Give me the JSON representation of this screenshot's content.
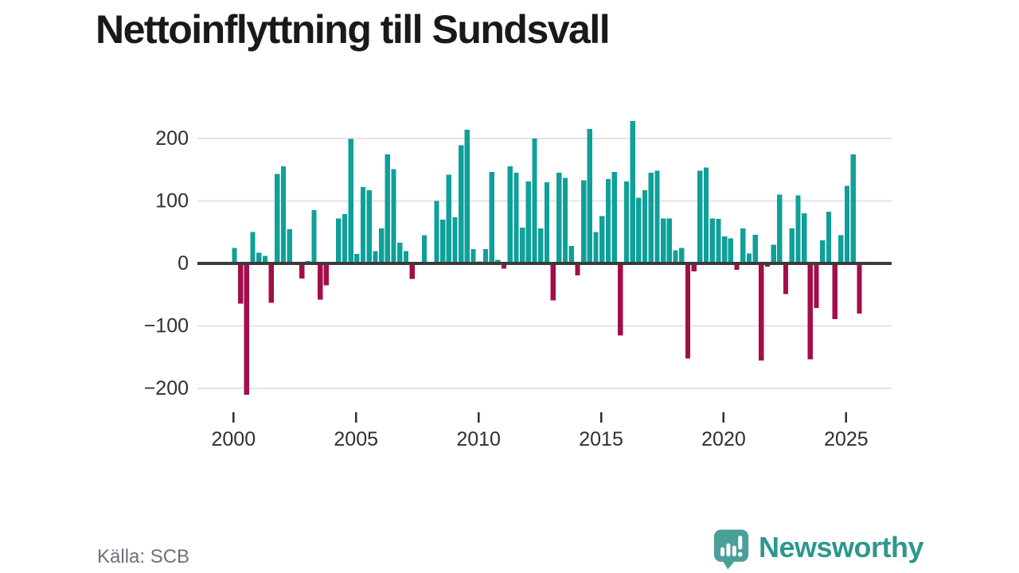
{
  "title": "Nettoinflyttning till Sundsvall",
  "source": "Källa: SCB",
  "branding": {
    "logo_text": "Newsworthy",
    "icon_name": "newsworthy-speech-bubble-bar-chart-icon"
  },
  "colors": {
    "background": "#FFFFFF",
    "positive_bar": "#0FA099",
    "negative_bar": "#A30D49",
    "zero_axis": "#3B3B3B",
    "gridline": "#E4E4E4",
    "title_text": "#191919",
    "axis_text": "#2F2F2F",
    "source_text": "#6F6F79",
    "brand_teal": "#2E978F",
    "brand_icon_teal": "#4C9F99"
  },
  "chart_data": {
    "type": "bar",
    "title": "Nettoinflyttning till Sundsvall",
    "series_name": "Nettoinflyttning per kvartal",
    "first_period": "2000-Q1",
    "last_period": "2025-Q3",
    "periods_per_year": 4,
    "first_year": 2000,
    "grid": "horizontal",
    "legend": "none",
    "ylim": [
      -230,
      245
    ],
    "y_ticks": [
      {
        "label": "200",
        "value": 200
      },
      {
        "label": "100",
        "value": 100
      },
      {
        "label": "0",
        "value": 0
      },
      {
        "label": "−100",
        "value": -100
      },
      {
        "label": "−200",
        "value": -200
      }
    ],
    "x_ticks": [
      {
        "label": "2000",
        "year": 2000
      },
      {
        "label": "2005",
        "year": 2005
      },
      {
        "label": "2010",
        "year": 2010
      },
      {
        "label": "2015",
        "year": 2015
      },
      {
        "label": "2020",
        "year": 2020
      },
      {
        "label": "2025",
        "year": 2025
      }
    ],
    "values": [
      25,
      -64,
      -210,
      50,
      17,
      12,
      -63,
      143,
      155,
      55,
      0,
      -24,
      4,
      85,
      -58,
      -35,
      0,
      72,
      79,
      199,
      15,
      122,
      117,
      20,
      56,
      174,
      151,
      33,
      20,
      -25,
      0,
      45,
      0,
      100,
      70,
      142,
      74,
      189,
      214,
      23,
      3,
      23,
      146,
      6,
      -8,
      155,
      145,
      57,
      131,
      200,
      56,
      130,
      -59,
      145,
      137,
      28,
      -19,
      133,
      215,
      50,
      76,
      135,
      146,
      -115,
      131,
      228,
      105,
      117,
      145,
      148,
      72,
      72,
      21,
      25,
      -152,
      -13,
      148,
      153,
      72,
      71,
      43,
      40,
      -10,
      56,
      16,
      46,
      -155,
      -5,
      30,
      110,
      -49,
      56,
      109,
      80,
      -153,
      -71,
      37,
      83,
      -89,
      45,
      124,
      174,
      -80
    ]
  }
}
